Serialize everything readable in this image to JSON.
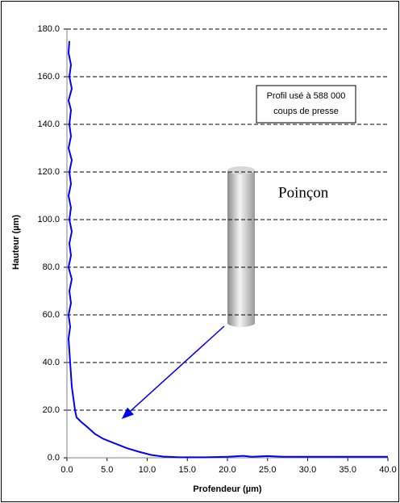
{
  "chart_data": {
    "type": "line",
    "x_label": "Profendeur (µm)",
    "y_label": "Hauteur (µm)",
    "annotation_box": [
      "Profil usé à 588 000",
      "coups de presse"
    ],
    "annotation_label": "Poinçon",
    "color": "#0000ff",
    "grid": true,
    "x": [
      0.3,
      0.2,
      0.5,
      0.3,
      0.6,
      0.2,
      0.5,
      0.3,
      0.5,
      0.2,
      0.6,
      0.3,
      0.5,
      0.2,
      0.5,
      0.3,
      0.6,
      0.3,
      0.5,
      0.2,
      0.6,
      0.3,
      0.5,
      0.2,
      0.4,
      0.2,
      0.3,
      0.4,
      0.5,
      0.6,
      0.8,
      1.0,
      1.2,
      1.8,
      2.5,
      3.5,
      4.5,
      6,
      7.5,
      9,
      10.5,
      12,
      14,
      17,
      20,
      22,
      23,
      25,
      27,
      30,
      35,
      40
    ],
    "values": [
      175,
      170,
      165,
      160,
      155,
      150,
      146,
      140,
      135,
      130,
      125,
      120,
      115,
      110,
      105,
      100,
      95,
      90,
      85,
      80,
      75,
      70,
      65,
      60,
      55,
      50,
      45,
      40,
      35,
      30,
      25,
      20,
      17,
      15,
      13,
      10,
      8,
      6,
      4,
      2.5,
      1.2,
      0.5,
      0.2,
      0.2,
      0.4,
      0.8,
      0.4,
      0.7,
      0.4,
      0.4,
      0.4,
      0.4
    ],
    "xlim": [
      0,
      40
    ],
    "ylim": [
      0,
      180
    ],
    "xticks": [
      {
        "value": 0,
        "label": "0.0"
      },
      {
        "value": 5,
        "label": "5.0"
      },
      {
        "value": 10,
        "label": "10.0"
      },
      {
        "value": 15,
        "label": "15.0"
      },
      {
        "value": 20,
        "label": "20.0"
      },
      {
        "value": 25,
        "label": "25.0"
      },
      {
        "value": 30,
        "label": "30.0"
      },
      {
        "value": 35,
        "label": "35.0"
      },
      {
        "value": 40,
        "label": "40.0"
      }
    ],
    "yticks": [
      {
        "value": 0,
        "label": "0.0"
      },
      {
        "value": 20,
        "label": "20.0"
      },
      {
        "value": 40,
        "label": "40.0"
      },
      {
        "value": 60,
        "label": "60.0"
      },
      {
        "value": 80,
        "label": "80.0"
      },
      {
        "value": 100,
        "label": "100.0"
      },
      {
        "value": 120,
        "label": "120.0"
      },
      {
        "value": 140,
        "label": "140.0"
      },
      {
        "value": 160,
        "label": "160.0"
      },
      {
        "value": 180,
        "label": "180.0"
      }
    ]
  }
}
